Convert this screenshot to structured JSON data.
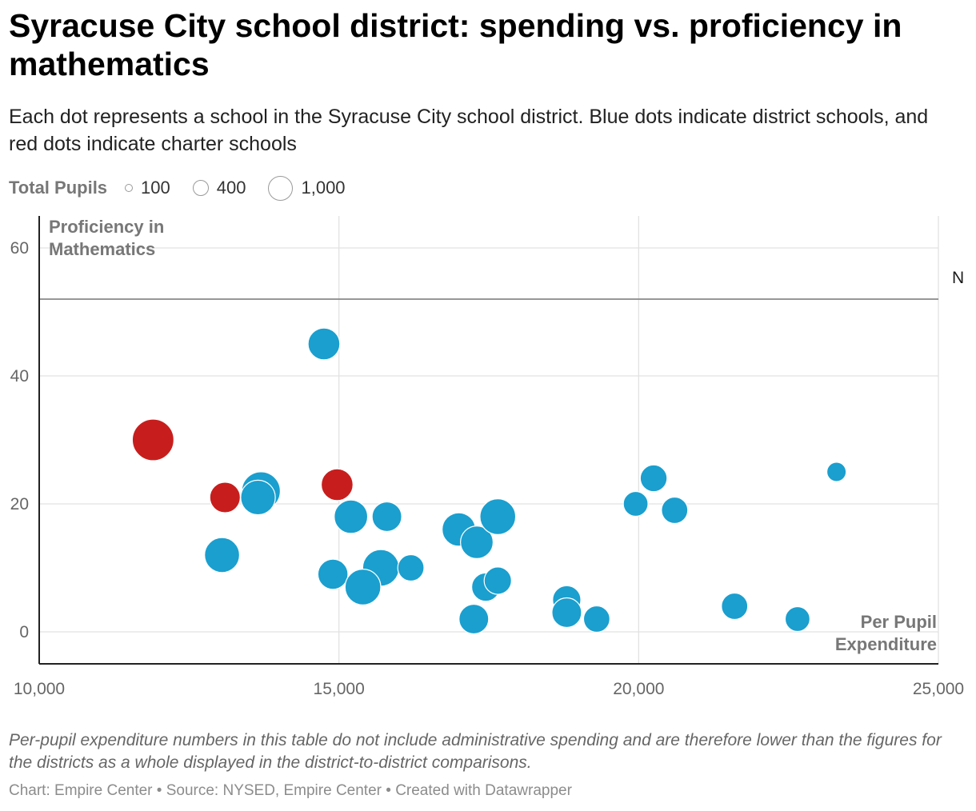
{
  "title": "Syracuse City school district: spending vs. proficiency in mathematics",
  "subtitle": "Each dot represents a school in the Syracuse City school district. Blue dots indicate district schools, and red dots indicate charter schools",
  "legend": {
    "title": "Total Pupils",
    "items": [
      {
        "label": "100",
        "value": 100
      },
      {
        "label": "400",
        "value": 400
      },
      {
        "label": "1,000",
        "value": 1000
      }
    ]
  },
  "colors": {
    "district": "#1a9fcf",
    "charter": "#c71e1d",
    "grid": "#e2e2e2",
    "axis": "#222222",
    "reference": "#888888"
  },
  "notes": "Per-pupil expenditure numbers in this table do not include administrative spending and are therefore lower than the figures for the districts as a whole displayed in the district-to-district comparisons.",
  "credit": "Chart: Empire Center • Source: NYSED, Empire Center • Created with Datawrapper",
  "chart_data": {
    "type": "scatter",
    "xlabel": "Per Pupil Expenditure",
    "ylabel": "Proficiency in Mathematics",
    "xlim": [
      10000,
      25000
    ],
    "ylim": [
      -5,
      65
    ],
    "xticks": [
      {
        "value": 10000,
        "label": "10,000"
      },
      {
        "value": 15000,
        "label": "15,000"
      },
      {
        "value": 20000,
        "label": "20,000"
      },
      {
        "value": 25000,
        "label": "25,000"
      }
    ],
    "yticks": [
      {
        "value": 0,
        "label": "0"
      },
      {
        "value": 20,
        "label": "20"
      },
      {
        "value": 40,
        "label": "40"
      },
      {
        "value": 60,
        "label": "60"
      }
    ],
    "reference_line": {
      "value": 52,
      "label": "N"
    },
    "points": [
      {
        "x": 11900,
        "y": 30,
        "pupils": 650,
        "type": "charter"
      },
      {
        "x": 13100,
        "y": 21,
        "pupils": 350,
        "type": "charter"
      },
      {
        "x": 14970,
        "y": 23,
        "pupils": 380,
        "type": "charter"
      },
      {
        "x": 14750,
        "y": 45,
        "pupils": 380,
        "type": "district"
      },
      {
        "x": 13700,
        "y": 22,
        "pupils": 560,
        "type": "district"
      },
      {
        "x": 13650,
        "y": 21,
        "pupils": 450,
        "type": "district"
      },
      {
        "x": 13050,
        "y": 12,
        "pupils": 460,
        "type": "district"
      },
      {
        "x": 15200,
        "y": 18,
        "pupils": 420,
        "type": "district"
      },
      {
        "x": 15800,
        "y": 18,
        "pupils": 330,
        "type": "district"
      },
      {
        "x": 14900,
        "y": 9,
        "pupils": 340,
        "type": "district"
      },
      {
        "x": 15700,
        "y": 10,
        "pupils": 500,
        "type": "district"
      },
      {
        "x": 15400,
        "y": 7,
        "pupils": 480,
        "type": "district"
      },
      {
        "x": 16200,
        "y": 10,
        "pupils": 260,
        "type": "district"
      },
      {
        "x": 17000,
        "y": 16,
        "pupils": 420,
        "type": "district"
      },
      {
        "x": 17300,
        "y": 14,
        "pupils": 400,
        "type": "district"
      },
      {
        "x": 17650,
        "y": 18,
        "pupils": 480,
        "type": "district"
      },
      {
        "x": 17450,
        "y": 7,
        "pupils": 300,
        "type": "district"
      },
      {
        "x": 17650,
        "y": 8,
        "pupils": 280,
        "type": "district"
      },
      {
        "x": 17250,
        "y": 2,
        "pupils": 330,
        "type": "district"
      },
      {
        "x": 18800,
        "y": 5,
        "pupils": 300,
        "type": "district"
      },
      {
        "x": 18800,
        "y": 3,
        "pupils": 330,
        "type": "district"
      },
      {
        "x": 19300,
        "y": 2,
        "pupils": 260,
        "type": "district"
      },
      {
        "x": 19950,
        "y": 20,
        "pupils": 230,
        "type": "district"
      },
      {
        "x": 20250,
        "y": 24,
        "pupils": 270,
        "type": "district"
      },
      {
        "x": 20600,
        "y": 19,
        "pupils": 260,
        "type": "district"
      },
      {
        "x": 21600,
        "y": 4,
        "pupils": 260,
        "type": "district"
      },
      {
        "x": 22650,
        "y": 2,
        "pupils": 230,
        "type": "district"
      },
      {
        "x": 23300,
        "y": 25,
        "pupils": 140,
        "type": "district"
      }
    ]
  }
}
